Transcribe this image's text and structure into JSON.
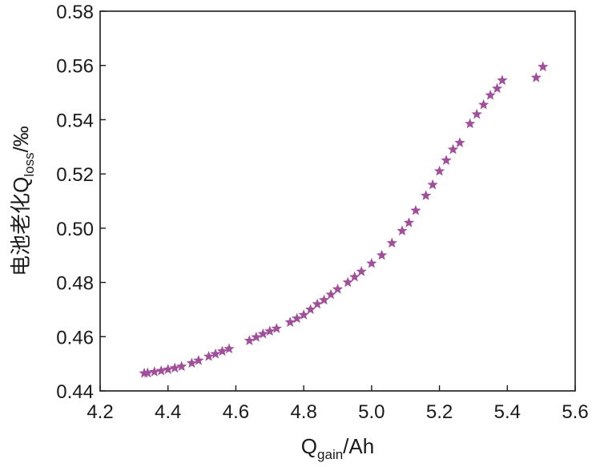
{
  "chart_data": {
    "type": "scatter",
    "title": "",
    "xlabel": {
      "main": "Q",
      "sub": "gain",
      "unit": "/Ah"
    },
    "ylabel": {
      "main": "电池老化Q",
      "sub": "loss",
      "unit": "/‰"
    },
    "xlim": [
      4.2,
      5.6
    ],
    "ylim": [
      0.44,
      0.58
    ],
    "xticks": [
      "4.2",
      "4.4",
      "4.6",
      "4.8",
      "5.0",
      "5.2",
      "5.4",
      "5.6"
    ],
    "yticks": [
      "0.44",
      "0.46",
      "0.48",
      "0.50",
      "0.52",
      "0.54",
      "0.56",
      "0.58"
    ],
    "grid": false,
    "marker": "star",
    "marker_color": "#a0509a",
    "series": [
      {
        "x": [
          4.33,
          4.34,
          4.36,
          4.38,
          4.4,
          4.42,
          4.44,
          4.47,
          4.49,
          4.52,
          4.54,
          4.56,
          4.58,
          4.64,
          4.66,
          4.68,
          4.7,
          4.72,
          4.76,
          4.78,
          4.8,
          4.82,
          4.84,
          4.86,
          4.88,
          4.9,
          4.93,
          4.95,
          4.97,
          5.0,
          5.03,
          5.06,
          5.09,
          5.11,
          5.13,
          5.16,
          5.18,
          5.2,
          5.22,
          5.24,
          5.26,
          5.29,
          5.31,
          5.33,
          5.35,
          5.37,
          5.385,
          5.485,
          5.505
        ],
        "y": [
          0.4465,
          0.4466,
          0.447,
          0.4474,
          0.4479,
          0.4484,
          0.449,
          0.4502,
          0.4512,
          0.4527,
          0.4536,
          0.4546,
          0.4555,
          0.4585,
          0.4598,
          0.461,
          0.462,
          0.463,
          0.4653,
          0.4667,
          0.468,
          0.47,
          0.472,
          0.4735,
          0.4755,
          0.4775,
          0.48,
          0.482,
          0.484,
          0.487,
          0.49,
          0.4945,
          0.499,
          0.502,
          0.5065,
          0.512,
          0.516,
          0.521,
          0.525,
          0.529,
          0.5315,
          0.5385,
          0.542,
          0.5455,
          0.549,
          0.5515,
          0.5545,
          0.5555,
          0.5595
        ]
      }
    ]
  }
}
